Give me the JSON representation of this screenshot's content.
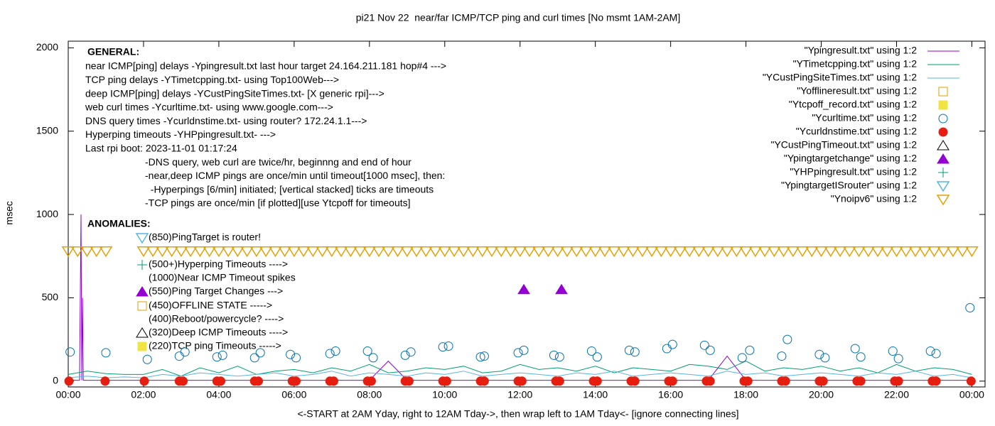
{
  "chart_data": {
    "type": "line",
    "title": "pi21 Nov 22  near/far ICMP/TCP ping and curl times [No msmt 1AM-2AM]",
    "x_label": "<-START at 2AM Yday, right to 12AM Tday->, then wrap left to 1AM Tday<- [ignore connecting lines]",
    "y_label": "msec",
    "xlim": [
      0,
      24.35
    ],
    "ylim": [
      -35,
      2040
    ],
    "xticks": [
      {
        "value": 0,
        "label": "00:00"
      },
      {
        "value": 2,
        "label": "02:00"
      },
      {
        "value": 4,
        "label": "04:00"
      },
      {
        "value": 6,
        "label": "06:00"
      },
      {
        "value": 8,
        "label": "08:00"
      },
      {
        "value": 10,
        "label": "10:00"
      },
      {
        "value": 12,
        "label": "12:00"
      },
      {
        "value": 14,
        "label": "14:00"
      },
      {
        "value": 16,
        "label": "16:00"
      },
      {
        "value": 18,
        "label": "18:00"
      },
      {
        "value": 20,
        "label": "20:00"
      },
      {
        "value": 22,
        "label": "22:00"
      },
      {
        "value": 24,
        "label": "00:00"
      }
    ],
    "yticks": [
      0,
      500,
      1000,
      1500,
      2000
    ],
    "grid": false,
    "legend": "top-right",
    "annotations": {
      "general_heading": "GENERAL:",
      "general_lines": [
        "near ICMP[ping] delays -Ypingresult.txt last hour target 24.164.211.181 hop#4 --->",
        "TCP ping delays -YTimetcpping.txt- using Top100Web--->",
        "deep ICMP[ping] delays -YCustPingSiteTimes.txt- [X generic rpi]--->",
        "web curl times -Ycurltime.txt- using www.google.com--->",
        "DNS query times -Ycurldnstime.txt- using router? 172.24.1.1--->",
        "Hyperping timeouts -YHPpingresult.txt- --->",
        "Last rpi boot: 2023-11-01 01:17:24",
        "-DNS query, web curl are twice/hr, beginnng and end of hour",
        "-near,deep ICMP pings are once/min until timeout[1000 msec], then:",
        "  -Hyperpings [6/min] initiated; [vertical stacked] ticks are timeouts",
        "-TCP pings are once/min [if plotted][use Ytcpoff for timeouts]"
      ],
      "anomalies_heading": "ANOMALIES:",
      "anomalies": [
        {
          "text": "(850)PingTarget is router!",
          "marker": "open-down-triangle",
          "color": "#56b4e9"
        },
        {
          "text": "(500+)Hyperping Timeouts ---->",
          "marker": "plus",
          "color": "#009e73"
        },
        {
          "text": "(1000)Near ICMP Timeout spikes",
          "marker": "none",
          "color": "#000000"
        },
        {
          "text": "(550)Ping Target Changes --->",
          "marker": "filled-triangle",
          "color": "#9400d3"
        },
        {
          "text": "(450)OFFLINE STATE ----->",
          "marker": "open-square",
          "color": "#e69f00"
        },
        {
          "text": "(400)Reboot/powercycle? ---->",
          "marker": "none",
          "color": "#000000"
        },
        {
          "text": "(320)Deep ICMP Timeouts ---->",
          "marker": "open-triangle",
          "color": "#000000"
        },
        {
          "text": "(220)TCP ping Timeouts ----->",
          "marker": "filled-square",
          "color": "#f0e442"
        }
      ]
    },
    "series": [
      {
        "name": "\"Ypingresult.txt\" using 1:2",
        "color": "#9400d3",
        "style": "lines",
        "x": [
          0,
          0.3,
          0.34,
          0.36,
          0.38,
          0.4,
          1,
          2,
          3,
          4,
          5,
          6,
          7,
          8,
          8.5,
          9,
          10,
          11,
          12,
          13,
          14,
          15,
          16,
          17,
          17.5,
          18,
          19,
          20,
          21,
          22,
          23,
          24
        ],
        "values": [
          5,
          5,
          1000,
          5,
          500,
          5,
          5,
          5,
          5,
          5,
          5,
          5,
          5,
          5,
          120,
          5,
          5,
          5,
          5,
          5,
          5,
          5,
          5,
          5,
          150,
          5,
          5,
          5,
          5,
          5,
          5,
          5
        ]
      },
      {
        "name": "\"YTimetcpping.txt\" using 1:2",
        "color": "#009e73",
        "style": "lines",
        "x": [
          0,
          0.5,
          1,
          1.5,
          2,
          2.5,
          3,
          3.5,
          4,
          4.5,
          5,
          5.5,
          6,
          6.5,
          7,
          7.5,
          8,
          8.5,
          9,
          9.5,
          10,
          10.5,
          11,
          11.5,
          12,
          12.5,
          13,
          13.5,
          14,
          14.5,
          15,
          15.5,
          16,
          16.5,
          17,
          17.5,
          18,
          18.5,
          19,
          19.5,
          20,
          20.5,
          21,
          21.5,
          22,
          22.5,
          23,
          23.5,
          24
        ],
        "values": [
          40,
          60,
          45,
          40,
          40,
          70,
          30,
          80,
          50,
          90,
          40,
          60,
          70,
          50,
          80,
          60,
          100,
          50,
          60,
          80,
          70,
          90,
          50,
          60,
          100,
          70,
          80,
          60,
          90,
          50,
          80,
          70,
          60,
          100,
          90,
          70,
          120,
          60,
          80,
          70,
          90,
          60,
          80,
          50,
          100,
          60,
          80,
          70,
          40
        ]
      },
      {
        "name": "\"YCustPingSiteTimes.txt\" using 1:2",
        "color": "#56b4e9",
        "style": "lines",
        "x": [
          0,
          0.5,
          1,
          1.5,
          2,
          2.5,
          3,
          3.5,
          4,
          4.5,
          5,
          5.5,
          6,
          6.5,
          7,
          7.5,
          8,
          8.5,
          9,
          9.5,
          10,
          10.5,
          11,
          11.5,
          12,
          12.5,
          13,
          13.5,
          14,
          14.5,
          15,
          15.5,
          16,
          16.5,
          17,
          17.5,
          18,
          18.5,
          19,
          19.5,
          20,
          20.5,
          21,
          21.5,
          22,
          22.5,
          23,
          23.5,
          24
        ],
        "values": [
          20,
          30,
          20,
          25,
          20,
          40,
          30,
          50,
          40,
          30,
          40,
          50,
          30,
          40,
          60,
          30,
          50,
          40,
          30,
          50,
          40,
          60,
          30,
          40,
          50,
          40,
          30,
          50,
          40,
          60,
          30,
          40,
          50,
          40,
          30,
          60,
          40,
          50,
          30,
          40,
          50,
          40,
          30,
          50,
          40,
          60,
          30,
          40,
          20
        ]
      },
      {
        "name": "\"Yofflineresult.txt\" using 1:2",
        "color": "#e69f00",
        "style": "open-square",
        "x": [],
        "values": []
      },
      {
        "name": "\"Ytcpoff_record.txt\" using 1:2",
        "color": "#f0e442",
        "style": "filled-square",
        "x": [],
        "values": []
      },
      {
        "name": "\"Ycurltime.txt\" using 1:2",
        "color": "#0072b2",
        "style": "open-circle",
        "x": [
          0.05,
          1,
          2.1,
          2.95,
          3.1,
          3.95,
          4.1,
          4.95,
          5.1,
          5.9,
          6.05,
          6.95,
          7.1,
          7.95,
          8.1,
          8.95,
          9.1,
          9.95,
          10.1,
          10.95,
          11.05,
          11.95,
          12.1,
          12.9,
          13.05,
          13.9,
          14.05,
          14.9,
          15.05,
          15.9,
          16.05,
          16.9,
          17.05,
          17.9,
          18.1,
          18.95,
          19.1,
          19.95,
          20.1,
          20.9,
          21.05,
          21.9,
          22.05,
          22.9,
          23.05,
          23.95
        ],
        "values": [
          175,
          170,
          130,
          150,
          175,
          145,
          155,
          140,
          170,
          160,
          140,
          165,
          180,
          180,
          140,
          155,
          175,
          205,
          210,
          145,
          150,
          170,
          185,
          155,
          145,
          180,
          145,
          185,
          175,
          195,
          220,
          215,
          185,
          140,
          185,
          150,
          250,
          160,
          140,
          195,
          145,
          180,
          135,
          180,
          165,
          440
        ]
      },
      {
        "name": "\"Ycurldnstime.txt\" using 1:2",
        "color": "#e51e10",
        "style": "filled-circle",
        "x": [
          0.02,
          0.98,
          2.02,
          2.95,
          3.05,
          3.95,
          4.05,
          4.95,
          5.05,
          5.95,
          6.05,
          6.95,
          7.05,
          7.95,
          8.05,
          8.95,
          9.05,
          9.95,
          10.05,
          10.95,
          11.05,
          11.95,
          12.05,
          12.95,
          13.05,
          13.95,
          14.05,
          14.95,
          15.05,
          15.95,
          16.05,
          16.95,
          17.05,
          17.95,
          18.05,
          18.95,
          19.05,
          19.95,
          20.05,
          20.95,
          21.05,
          21.95,
          22.05,
          22.95,
          23.05,
          23.98
        ],
        "values": [
          0,
          0,
          0,
          0,
          0,
          0,
          0,
          0,
          0,
          0,
          0,
          0,
          0,
          0,
          0,
          0,
          0,
          0,
          0,
          0,
          0,
          0,
          0,
          0,
          0,
          0,
          0,
          0,
          0,
          0,
          0,
          0,
          0,
          0,
          0,
          0,
          0,
          0,
          0,
          0,
          0,
          0,
          0,
          0,
          0,
          0
        ]
      },
      {
        "name": "\"YCustPingTimeout.txt\" using 1:2",
        "color": "#000000",
        "style": "open-triangle",
        "x": [],
        "values": []
      },
      {
        "name": "\"Ypingtargetchange\" using 1:2",
        "color": "#9400d3",
        "style": "filled-triangle",
        "x": [
          12.1,
          13.1
        ],
        "values": [
          550,
          550
        ]
      },
      {
        "name": "\"YHPpingresult.txt\" using 1:2",
        "color": "#009e73",
        "style": "plus",
        "x": [],
        "values": []
      },
      {
        "name": "\"YpingtargetISrouter\" using 1:2",
        "color": "#56b4e9",
        "style": "open-down-triangle",
        "x": [],
        "values": []
      },
      {
        "name": "\"Ynoipv6\" using 1:2",
        "color": "#e69f00",
        "style": "open-down-triangle",
        "x": [
          0,
          0.25,
          0.5,
          0.75,
          1,
          2,
          2.25,
          2.5,
          2.75,
          3,
          3.25,
          3.5,
          3.75,
          4,
          4.25,
          4.5,
          4.75,
          5,
          5.25,
          5.5,
          5.75,
          6,
          6.25,
          6.5,
          6.75,
          7,
          7.25,
          7.5,
          7.75,
          8,
          8.25,
          8.5,
          8.75,
          9,
          9.25,
          9.5,
          9.75,
          10,
          10.25,
          10.5,
          10.75,
          11,
          11.25,
          11.5,
          11.75,
          12,
          12.25,
          12.5,
          12.75,
          13,
          13.25,
          13.5,
          13.75,
          14,
          14.25,
          14.5,
          14.75,
          15,
          15.25,
          15.5,
          15.75,
          16,
          16.25,
          16.5,
          16.75,
          17,
          17.25,
          17.5,
          17.75,
          18,
          18.25,
          18.5,
          18.75,
          19,
          19.25,
          19.5,
          19.75,
          20,
          20.25,
          20.5,
          20.75,
          21,
          21.25,
          21.5,
          21.75,
          22,
          22.25,
          22.5,
          22.75,
          23,
          23.25,
          23.5,
          23.75,
          24
        ],
        "values": [
          780,
          780,
          780,
          780,
          780,
          780,
          780,
          780,
          780,
          780,
          780,
          780,
          780,
          780,
          780,
          780,
          780,
          780,
          780,
          780,
          780,
          780,
          780,
          780,
          780,
          780,
          780,
          780,
          780,
          780,
          780,
          780,
          780,
          780,
          780,
          780,
          780,
          780,
          780,
          780,
          780,
          780,
          780,
          780,
          780,
          780,
          780,
          780,
          780,
          780,
          780,
          780,
          780,
          780,
          780,
          780,
          780,
          780,
          780,
          780,
          780,
          780,
          780,
          780,
          780,
          780,
          780,
          780,
          780,
          780,
          780,
          780,
          780,
          780,
          780,
          780,
          780,
          780,
          780,
          780,
          780,
          780,
          780,
          780,
          780,
          780,
          780,
          780,
          780,
          780,
          780,
          780,
          780,
          780
        ]
      }
    ]
  }
}
